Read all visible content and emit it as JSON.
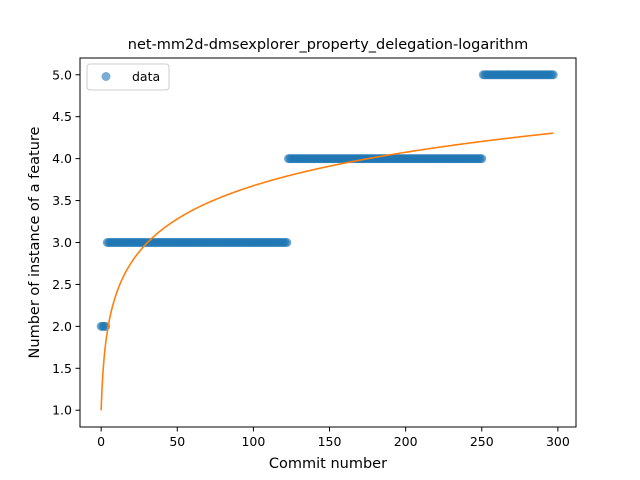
{
  "chart_data": {
    "type": "scatter",
    "title": "net-mm2d-dmsexplorer_property_delegation-logarithm",
    "xlabel": "Commit number",
    "ylabel": "Number of instance of a feature",
    "xlim": [
      -13.9,
      311.9
    ],
    "ylim": [
      0.8,
      5.2
    ],
    "xticks": [
      0,
      50,
      100,
      150,
      200,
      250,
      300
    ],
    "yticks": [
      1.0,
      1.5,
      2.0,
      2.5,
      3.0,
      3.5,
      4.0,
      4.5,
      5.0
    ],
    "xtick_labels": [
      "0",
      "50",
      "100",
      "150",
      "200",
      "250",
      "300"
    ],
    "ytick_labels": [
      "1.0",
      "1.5",
      "2.0",
      "2.5",
      "3.0",
      "3.5",
      "4.0",
      "4.5",
      "5.0"
    ],
    "legend": {
      "placement": "upper-left",
      "entries": [
        "data"
      ]
    },
    "grid": false,
    "series": [
      {
        "name": "data",
        "kind": "scatter",
        "color": "#1f77b4",
        "segments": [
          {
            "x_start": 0,
            "x_end": 3,
            "y": 2
          },
          {
            "x_start": 4,
            "x_end": 122,
            "y": 3
          },
          {
            "x_start": 123,
            "x_end": 250,
            "y": 4
          },
          {
            "x_start": 251,
            "x_end": 297,
            "y": 5
          }
        ]
      },
      {
        "name": "",
        "kind": "line",
        "color": "#ff7f0e",
        "function": "y = 1 + 0.58 * ln(x + 1)",
        "x_range": [
          0,
          297
        ]
      }
    ]
  }
}
